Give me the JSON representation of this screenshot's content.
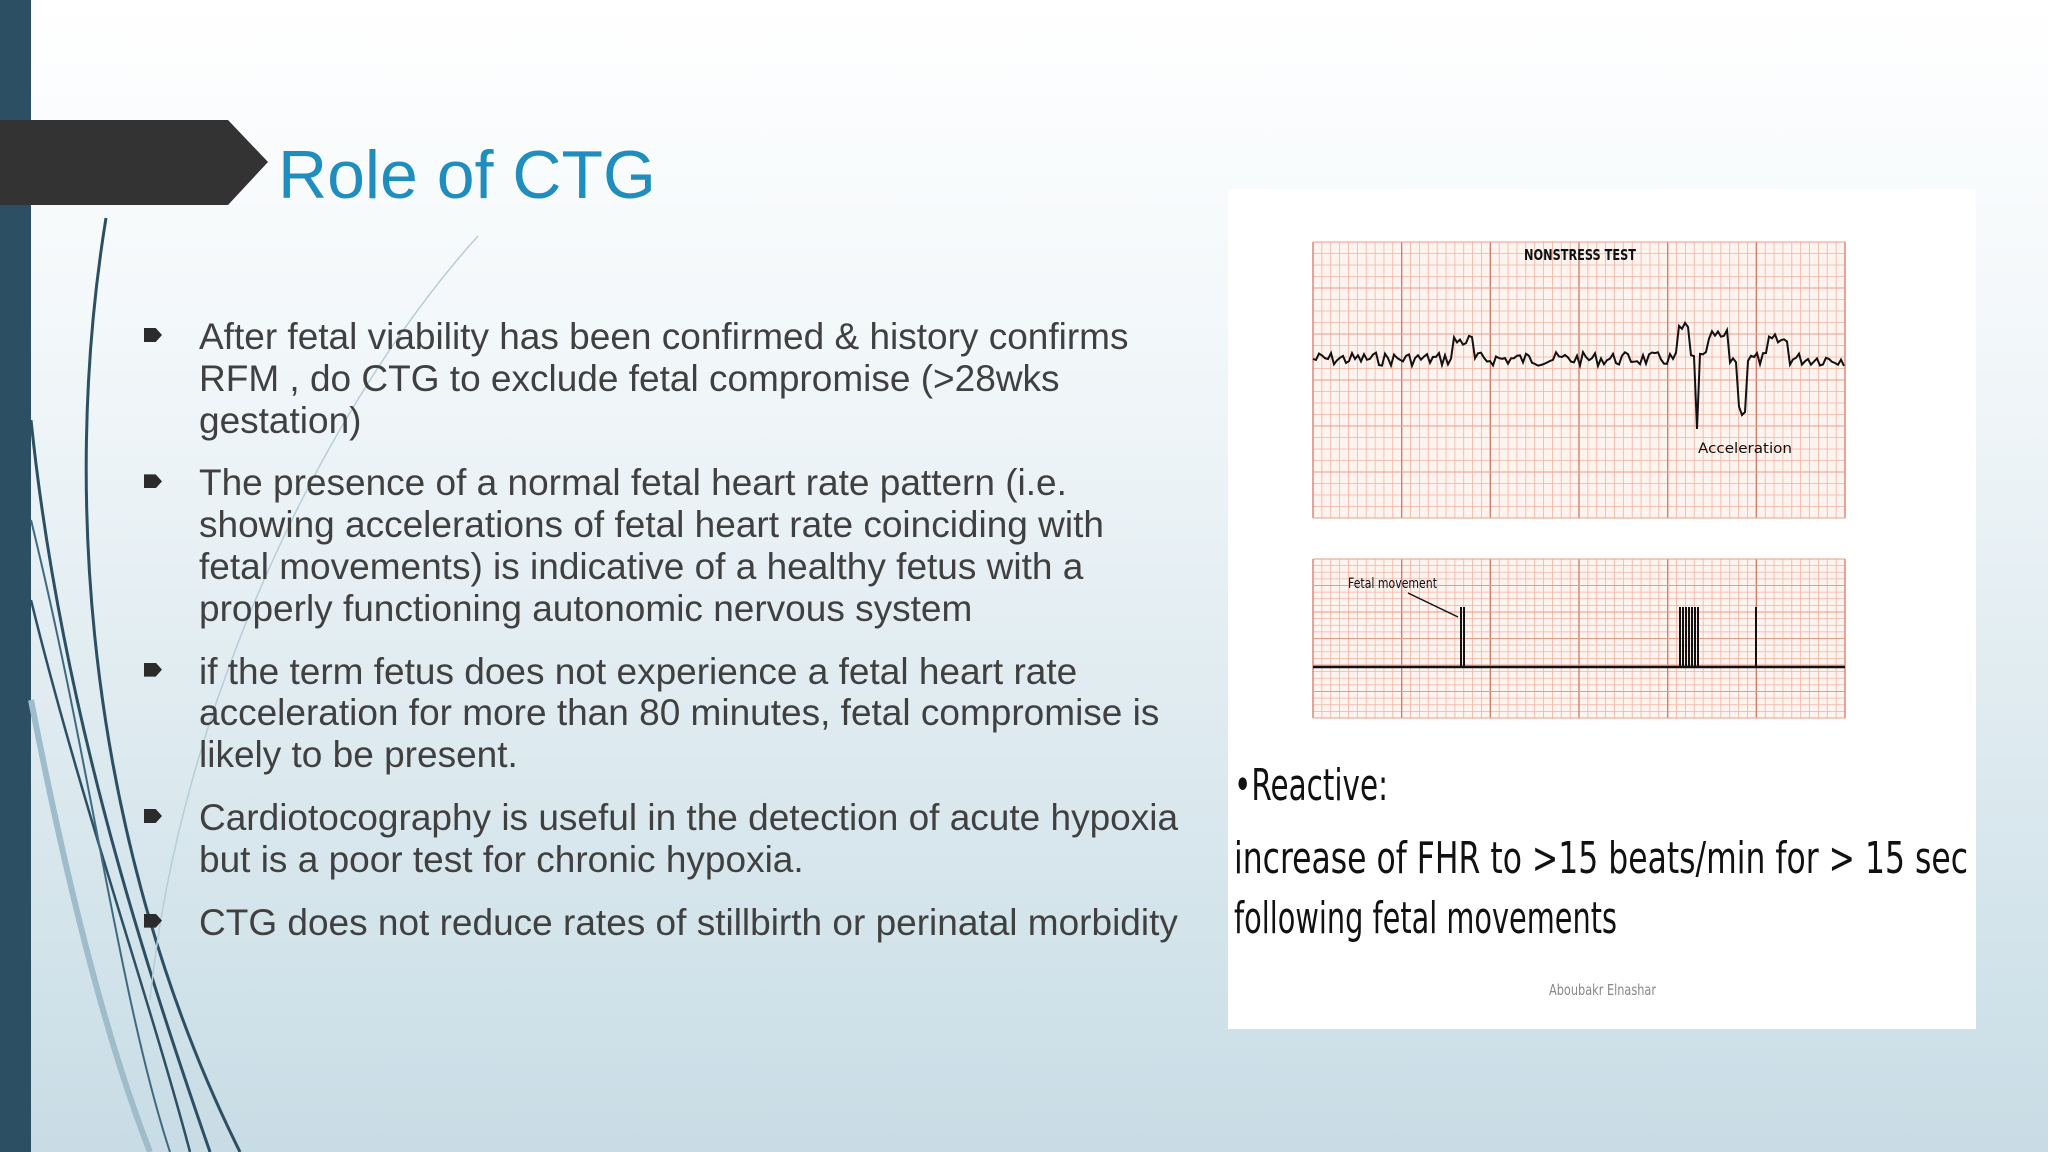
{
  "slide": {
    "title": "Role of CTG",
    "bullets": [
      "After fetal viability has been confirmed & history confirms RFM , do CTG to exclude fetal compromise (>28wks gestation)",
      "The presence of a normal fetal heart rate pattern (i.e. showing accelerations of fetal heart rate coinciding with fetal movements) is indicative of a healthy fetus with a properly functioning autonomic nervous system",
      "if the term fetus does not experience a fetal heart rate acceleration for more than 80 minutes, fetal compromise is likely to be present.",
      "Cardiotocography is useful in the detection of acute hypoxia but is a poor test for chronic hypoxia.",
      "CTG does not reduce rates of stillbirth or perinatal morbidity"
    ],
    "figure": {
      "heading": "NONSTRESS TEST",
      "acceleration_label": "Acceleration",
      "fetal_movement_label": "Fetal movement",
      "reactive": "•Reactive:",
      "description_lines": [
        "increase of FHR to >15 beats/min for > 15 sec",
        "following fetal movements"
      ],
      "credit": "Aboubakr Elnashar"
    }
  }
}
